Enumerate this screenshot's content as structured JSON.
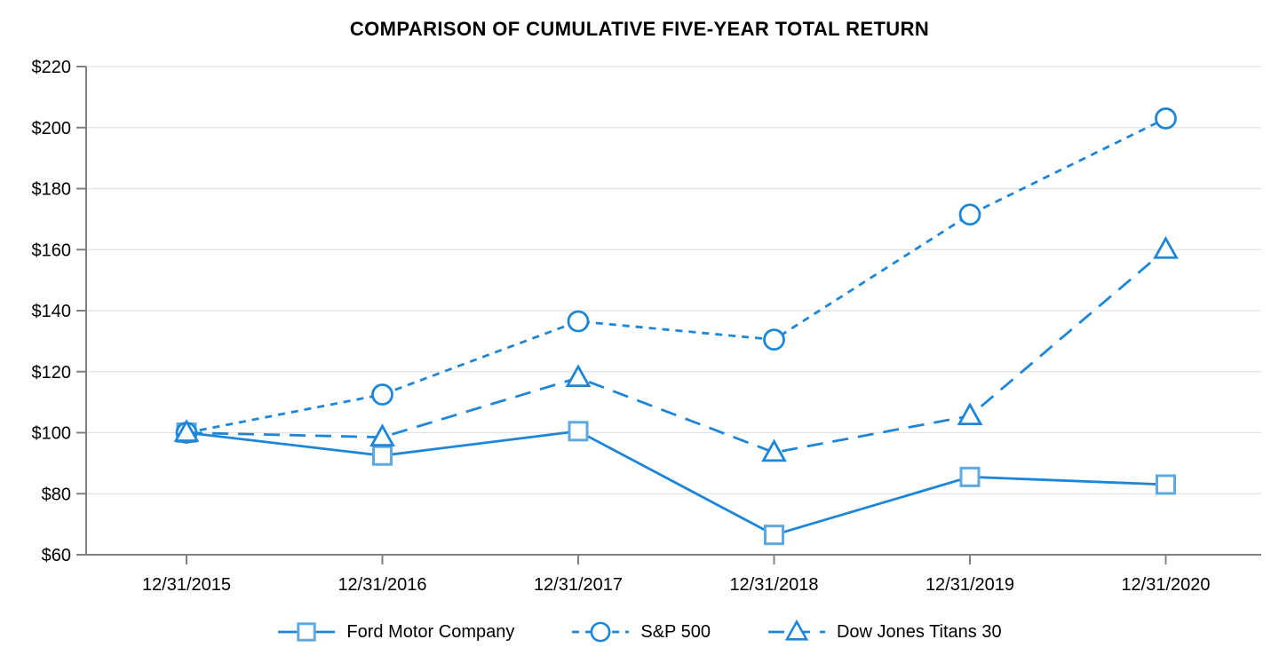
{
  "title": "COMPARISON OF CUMULATIVE FIVE-YEAR TOTAL RETURN",
  "chart_data": {
    "type": "line",
    "title": "COMPARISON OF CUMULATIVE FIVE-YEAR TOTAL RETURN",
    "x": [
      "12/31/2015",
      "12/31/2016",
      "12/31/2017",
      "12/31/2018",
      "12/31/2019",
      "12/31/2020"
    ],
    "series": [
      {
        "name": "Ford Motor Company",
        "values": [
          100,
          92.5,
          100.5,
          66.5,
          85.5,
          83
        ],
        "marker": "square",
        "line_style": "solid",
        "line_color": "#1d86d8",
        "marker_color": "#5fa9e2"
      },
      {
        "name": "S&P 500",
        "values": [
          100,
          112.5,
          136.5,
          130.5,
          171.5,
          203
        ],
        "marker": "circle",
        "line_style": "dash",
        "line_color": "#1d86d8",
        "marker_color": "#1d86d8"
      },
      {
        "name": "Dow Jones Titans 30",
        "values": [
          100,
          98.5,
          118,
          93.5,
          105.5,
          160
        ],
        "marker": "triangle",
        "line_style": "longdash",
        "line_color": "#1d86d8",
        "marker_color": "#1d86d8"
      }
    ],
    "ylim": [
      60,
      220
    ],
    "ytick_step": 20,
    "ytick_prefix": "$",
    "grid": true,
    "legend_position": "bottom",
    "axis_color": "#808080",
    "grid_color": "#e2e2e2",
    "text_color": "#000000"
  }
}
